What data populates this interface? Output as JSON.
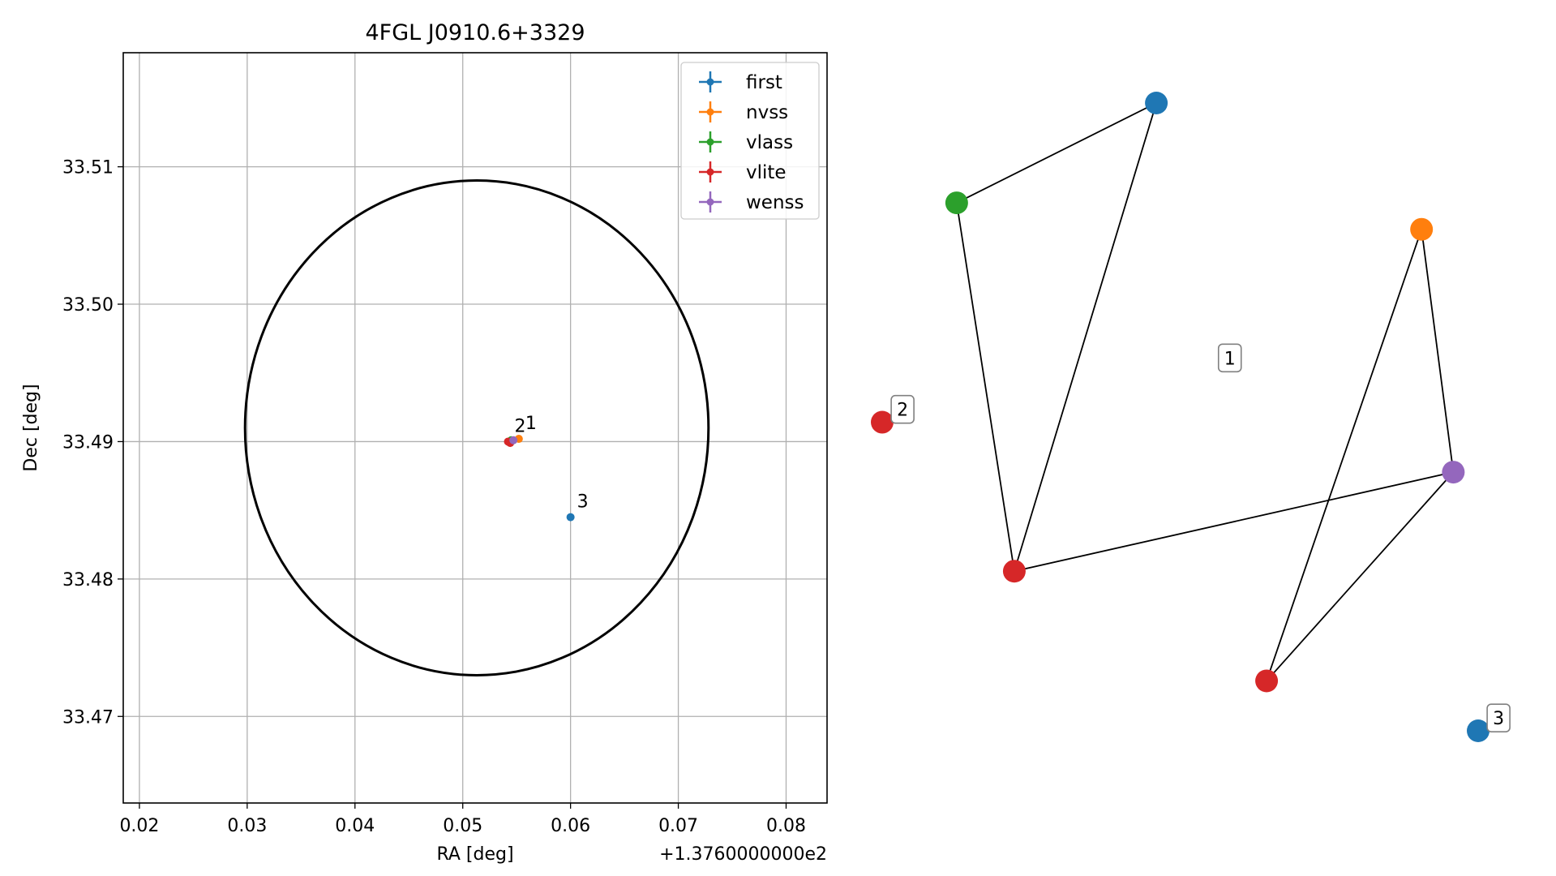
{
  "chart_data": [
    {
      "type": "scatter",
      "title": "4FGL J0910.6+3329",
      "xlabel": "RA [deg]",
      "ylabel": "Dec [deg]",
      "x_offset_label": "+1.3760000000e2",
      "xlim": [
        0.0185,
        0.0838
      ],
      "ylim": [
        33.4637,
        33.5183
      ],
      "xticks": [
        "0.02",
        "0.03",
        "0.04",
        "0.05",
        "0.06",
        "0.07",
        "0.08"
      ],
      "yticks": [
        "33.47",
        "33.48",
        "33.49",
        "33.50",
        "33.51"
      ],
      "grid": true,
      "legend_position": "top-right",
      "circle": {
        "center_x": 0.0513,
        "center_y": 33.491,
        "radius_x": 0.0215,
        "radius_y": 0.018,
        "color": "#000000"
      },
      "series": [
        {
          "name": "first",
          "color": "#1f77b4",
          "points": [
            {
              "x": 0.06,
              "y": 33.4845,
              "label": "3"
            }
          ]
        },
        {
          "name": "nvss",
          "color": "#ff7f0e",
          "points": [
            {
              "x": 0.0552,
              "y": 33.4902,
              "label": "1"
            }
          ]
        },
        {
          "name": "vlass",
          "color": "#2ca02c",
          "points": [
            {
              "x": 0.0545,
              "y": 33.4901,
              "label": ""
            }
          ]
        },
        {
          "name": "vlite",
          "color": "#d62728",
          "points": [
            {
              "x": 0.0542,
              "y": 33.49,
              "label": "2"
            },
            {
              "x": 0.0544,
              "y": 33.4899,
              "label": ""
            }
          ]
        },
        {
          "name": "wenss",
          "color": "#9467bd",
          "points": [
            {
              "x": 0.0547,
              "y": 33.4901,
              "label": ""
            }
          ]
        }
      ]
    },
    {
      "type": "network",
      "nodes": [
        {
          "id": "blue_top",
          "color": "#1f77b4",
          "x": 0.552,
          "y": 0.093
        },
        {
          "id": "green",
          "color": "#2ca02c",
          "x": 0.15,
          "y": 0.225
        },
        {
          "id": "orange",
          "color": "#ff7f0e",
          "x": 1.086,
          "y": 0.26
        },
        {
          "id": "purple",
          "color": "#9467bd",
          "x": 1.15,
          "y": 0.581
        },
        {
          "id": "red_left",
          "color": "#d62728",
          "x": 0.266,
          "y": 0.712
        },
        {
          "id": "red_bottom",
          "color": "#d62728",
          "x": 0.774,
          "y": 0.857
        },
        {
          "id": "red_isolated",
          "color": "#d62728",
          "x": 0.0,
          "y": 0.515
        },
        {
          "id": "blue_isolated",
          "color": "#1f77b4",
          "x": 1.2,
          "y": 0.923
        }
      ],
      "edges": [
        [
          "blue_top",
          "green"
        ],
        [
          "blue_top",
          "red_left"
        ],
        [
          "green",
          "red_left"
        ],
        [
          "red_left",
          "purple"
        ],
        [
          "orange",
          "purple"
        ],
        [
          "orange",
          "red_bottom"
        ],
        [
          "purple",
          "red_bottom"
        ]
      ],
      "labels": [
        {
          "text": "1",
          "x": 0.7,
          "y": 0.43
        },
        {
          "text": "2",
          "x": 0.041,
          "y": 0.498
        },
        {
          "text": "3",
          "x": 1.241,
          "y": 0.906
        }
      ]
    }
  ]
}
